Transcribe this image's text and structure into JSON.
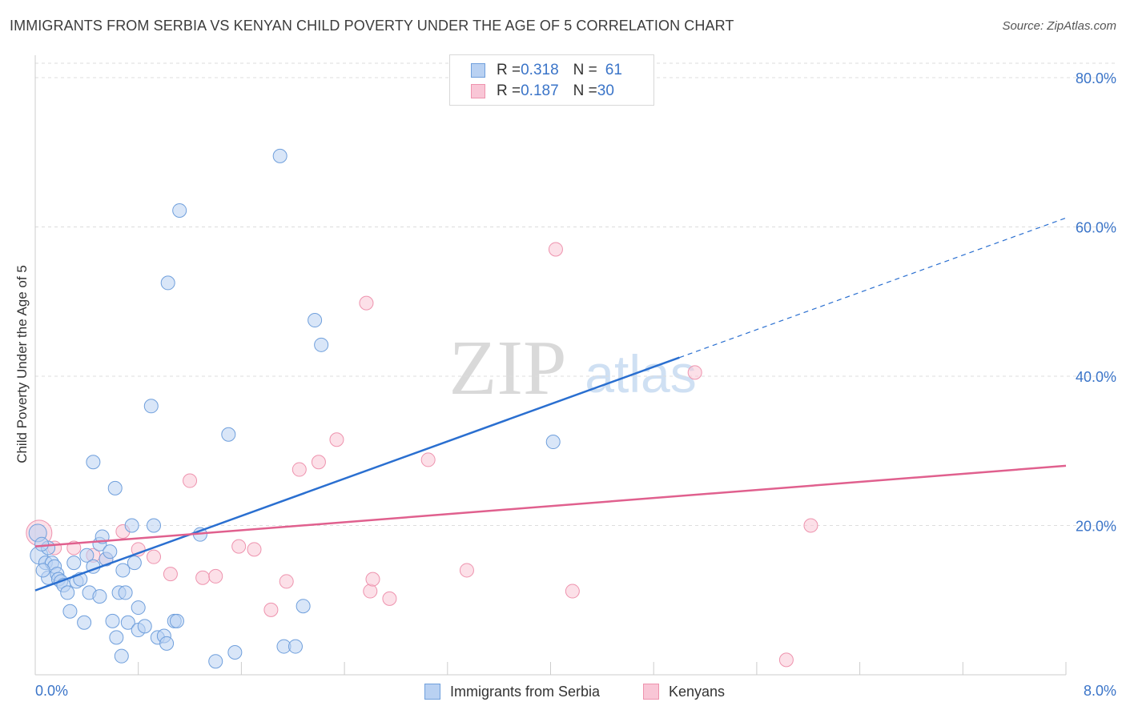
{
  "header": {
    "title": "IMMIGRANTS FROM SERBIA VS KENYAN CHILD POVERTY UNDER THE AGE OF 5 CORRELATION CHART",
    "source": "Source: ZipAtlas.com"
  },
  "watermark": {
    "zip": "ZIP",
    "atlas": "atlas"
  },
  "colors": {
    "serbia_fill": "#b9d1f2",
    "serbia_stroke": "#6f9fdc",
    "serbia_line": "#2a6fd0",
    "kenya_fill": "#f9c6d6",
    "kenya_stroke": "#ee93ae",
    "kenya_line": "#e0608e",
    "tick_label": "#3a74c8",
    "grid": "#dddddd"
  },
  "legend": {
    "rows": [
      {
        "r_label": "R = ",
        "r_value": "0.318",
        "n_label": "N = ",
        "n_value": "61"
      },
      {
        "r_label": "R = ",
        "r_value": "0.187",
        "n_label": "N = ",
        "n_value": "30"
      }
    ],
    "bottom": [
      "Immigrants from Serbia",
      "Kenyans"
    ]
  },
  "chart_data": {
    "type": "scatter",
    "title": "IMMIGRANTS FROM SERBIA VS KENYAN CHILD POVERTY UNDER THE AGE OF 5 CORRELATION CHART",
    "xlabel": "",
    "ylabel": "Child Poverty Under the Age of 5",
    "xlim": [
      0,
      8
    ],
    "ylim": [
      0,
      83
    ],
    "x_tick_labels": [
      "0.0%",
      "8.0%"
    ],
    "y_ticks": [
      20,
      40,
      60,
      80
    ],
    "y_tick_labels": [
      "20.0%",
      "40.0%",
      "60.0%",
      "80.0%"
    ],
    "grid": true,
    "legend_position": "top-center",
    "series": [
      {
        "name": "Immigrants from Serbia",
        "r": 0.318,
        "n": 61,
        "trend": {
          "x": [
            0,
            5.0
          ],
          "y": [
            11.3,
            42.5
          ],
          "dashed_to": [
            8.0,
            61.2
          ]
        },
        "points": [
          [
            0.02,
            19.0
          ],
          [
            0.03,
            16.0
          ],
          [
            0.08,
            15.0
          ],
          [
            0.1,
            17.0
          ],
          [
            0.1,
            13.0
          ],
          [
            0.13,
            15.0
          ],
          [
            0.15,
            14.5
          ],
          [
            0.17,
            13.5
          ],
          [
            0.18,
            12.8
          ],
          [
            0.2,
            12.5
          ],
          [
            0.22,
            12.0
          ],
          [
            0.25,
            11.0
          ],
          [
            0.27,
            8.5
          ],
          [
            0.3,
            15.0
          ],
          [
            0.32,
            12.5
          ],
          [
            0.35,
            12.8
          ],
          [
            0.38,
            7.0
          ],
          [
            0.4,
            16.0
          ],
          [
            0.42,
            11.0
          ],
          [
            0.45,
            14.5
          ],
          [
            0.45,
            28.5
          ],
          [
            0.5,
            17.5
          ],
          [
            0.5,
            10.5
          ],
          [
            0.52,
            18.5
          ],
          [
            0.55,
            15.5
          ],
          [
            0.58,
            16.5
          ],
          [
            0.6,
            7.2
          ],
          [
            0.62,
            25.0
          ],
          [
            0.63,
            5.0
          ],
          [
            0.65,
            11.0
          ],
          [
            0.67,
            2.5
          ],
          [
            0.68,
            14.0
          ],
          [
            0.7,
            11.0
          ],
          [
            0.72,
            7.0
          ],
          [
            0.75,
            20.0
          ],
          [
            0.77,
            15.0
          ],
          [
            0.8,
            9.0
          ],
          [
            0.8,
            6.0
          ],
          [
            0.85,
            6.5
          ],
          [
            0.9,
            36.0
          ],
          [
            0.92,
            20.0
          ],
          [
            0.95,
            5.0
          ],
          [
            1.0,
            5.2
          ],
          [
            1.02,
            4.2
          ],
          [
            1.03,
            52.5
          ],
          [
            1.08,
            7.2
          ],
          [
            1.1,
            7.2
          ],
          [
            1.12,
            62.2
          ],
          [
            1.28,
            18.8
          ],
          [
            1.4,
            1.8
          ],
          [
            1.5,
            32.2
          ],
          [
            1.55,
            3.0
          ],
          [
            1.9,
            69.5
          ],
          [
            1.93,
            3.8
          ],
          [
            2.02,
            3.8
          ],
          [
            2.08,
            9.2
          ],
          [
            2.17,
            47.5
          ],
          [
            2.22,
            44.2
          ],
          [
            4.02,
            31.2
          ],
          [
            0.05,
            17.5
          ],
          [
            0.06,
            14.0
          ]
        ]
      },
      {
        "name": "Kenyans",
        "r": 0.187,
        "n": 30,
        "trend": {
          "x": [
            0,
            8.0
          ],
          "y": [
            17.2,
            28.0
          ]
        },
        "points": [
          [
            0.03,
            19.0
          ],
          [
            0.15,
            17.0
          ],
          [
            0.3,
            17.0
          ],
          [
            0.45,
            16.0
          ],
          [
            0.55,
            15.5
          ],
          [
            0.68,
            19.2
          ],
          [
            0.8,
            16.8
          ],
          [
            0.92,
            15.8
          ],
          [
            1.05,
            13.5
          ],
          [
            1.2,
            26.0
          ],
          [
            1.3,
            13.0
          ],
          [
            1.4,
            13.2
          ],
          [
            1.58,
            17.2
          ],
          [
            1.7,
            16.8
          ],
          [
            1.83,
            8.7
          ],
          [
            1.95,
            12.5
          ],
          [
            2.05,
            27.5
          ],
          [
            2.2,
            28.5
          ],
          [
            2.34,
            31.5
          ],
          [
            2.57,
            49.8
          ],
          [
            2.6,
            11.2
          ],
          [
            2.62,
            12.8
          ],
          [
            2.75,
            10.2
          ],
          [
            3.05,
            28.8
          ],
          [
            3.35,
            14.0
          ],
          [
            4.04,
            57.0
          ],
          [
            4.17,
            11.2
          ],
          [
            5.12,
            40.5
          ],
          [
            5.83,
            2.0
          ],
          [
            6.02,
            20.0
          ]
        ]
      }
    ]
  }
}
